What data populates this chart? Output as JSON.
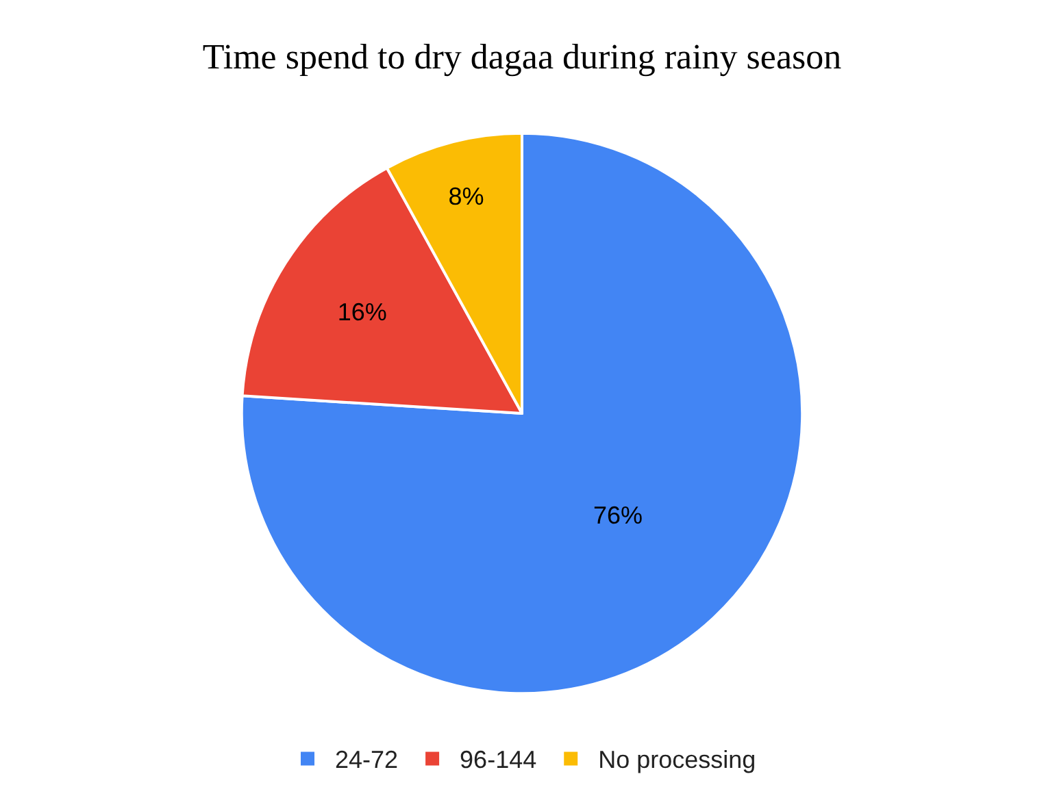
{
  "chart_data": {
    "type": "pie",
    "title": "Time spend to dry dagaa during rainy season",
    "categories": [
      "24-72",
      "96-144",
      "No processing"
    ],
    "values": [
      76,
      16,
      8
    ],
    "value_labels": [
      "76%",
      "16%",
      "8%"
    ],
    "colors": [
      "#4285f4",
      "#ea4335",
      "#fbbc04"
    ],
    "legend": "bottom"
  }
}
